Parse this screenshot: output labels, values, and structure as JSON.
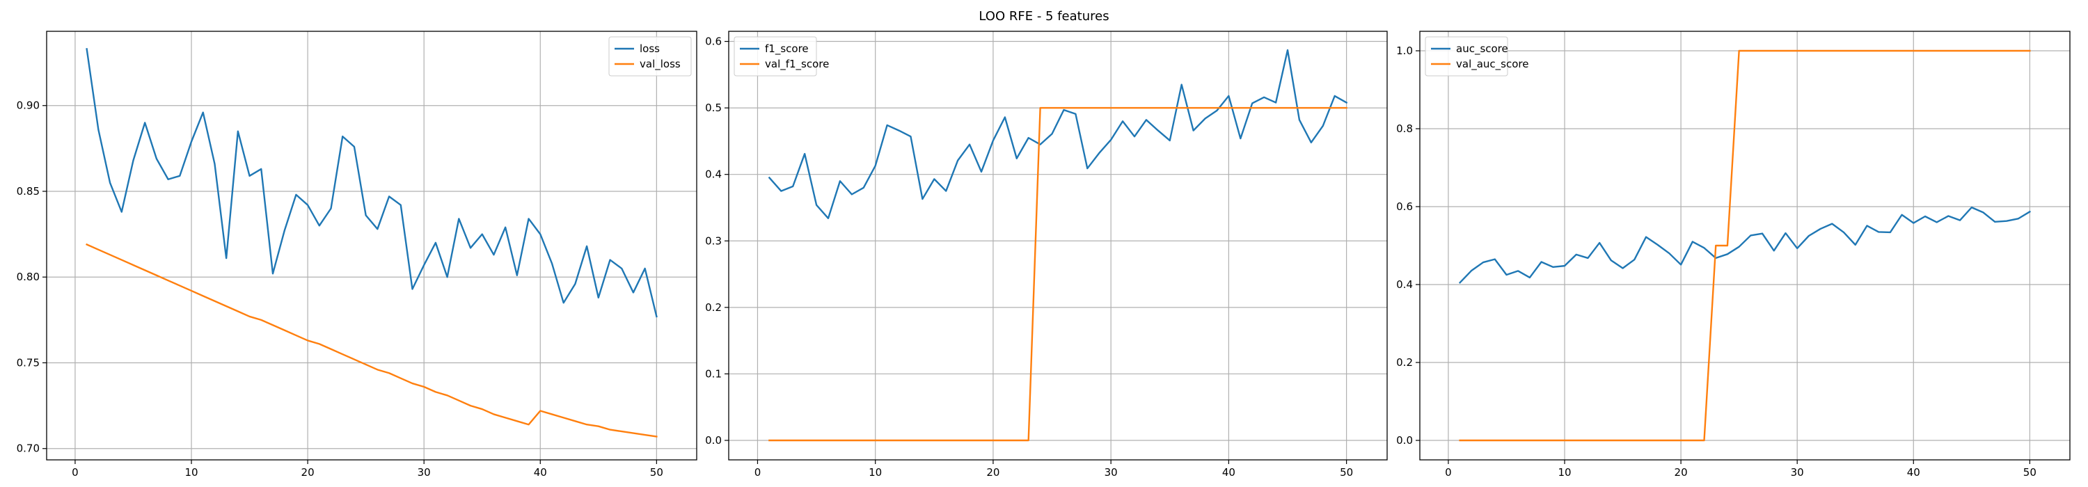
{
  "figure": {
    "title": "LOO RFE - 5 features"
  },
  "chart_data": [
    {
      "type": "line",
      "title": "",
      "xlabel": "",
      "ylabel": "",
      "xlim": [
        -2.45,
        53.45
      ],
      "ylim": [
        0.6934,
        0.9433
      ],
      "xticks": [
        0,
        10,
        20,
        30,
        40,
        50
      ],
      "yticks": [
        0.7,
        0.75,
        0.8,
        0.85,
        0.9
      ],
      "ytick_labels": [
        "0.70",
        "0.75",
        "0.80",
        "0.85",
        "0.90"
      ],
      "grid": true,
      "legend_position": "upper right",
      "series": [
        {
          "name": "loss",
          "color": "#1f77b4",
          "x": [
            1,
            2,
            3,
            4,
            5,
            6,
            7,
            8,
            9,
            10,
            11,
            12,
            13,
            14,
            15,
            16,
            17,
            18,
            19,
            20,
            21,
            22,
            23,
            24,
            25,
            26,
            27,
            28,
            29,
            30,
            31,
            32,
            33,
            34,
            35,
            36,
            37,
            38,
            39,
            40,
            41,
            42,
            43,
            44,
            45,
            46,
            47,
            48,
            49,
            50
          ],
          "values": [
            0.933,
            0.886,
            0.855,
            0.838,
            0.868,
            0.89,
            0.869,
            0.857,
            0.859,
            0.879,
            0.896,
            0.866,
            0.811,
            0.885,
            0.859,
            0.863,
            0.802,
            0.827,
            0.848,
            0.842,
            0.83,
            0.84,
            0.882,
            0.876,
            0.836,
            0.828,
            0.847,
            0.842,
            0.793,
            0.807,
            0.82,
            0.8,
            0.834,
            0.817,
            0.825,
            0.813,
            0.829,
            0.801,
            0.834,
            0.825,
            0.808,
            0.785,
            0.796,
            0.818,
            0.788,
            0.81,
            0.805,
            0.791,
            0.805,
            0.777
          ]
        },
        {
          "name": "val_loss",
          "color": "#ff7f0e",
          "x": [
            1,
            2,
            3,
            4,
            5,
            6,
            7,
            8,
            9,
            10,
            11,
            12,
            13,
            14,
            15,
            16,
            17,
            18,
            19,
            20,
            21,
            22,
            23,
            24,
            25,
            26,
            27,
            28,
            29,
            30,
            31,
            32,
            33,
            34,
            35,
            36,
            37,
            38,
            39,
            40,
            41,
            42,
            43,
            44,
            45,
            46,
            47,
            48,
            49,
            50
          ],
          "values": [
            0.819,
            0.816,
            0.813,
            0.81,
            0.807,
            0.804,
            0.801,
            0.798,
            0.795,
            0.792,
            0.789,
            0.786,
            0.783,
            0.78,
            0.777,
            0.775,
            0.772,
            0.769,
            0.766,
            0.763,
            0.761,
            0.758,
            0.755,
            0.752,
            0.749,
            0.746,
            0.744,
            0.741,
            0.738,
            0.736,
            0.733,
            0.731,
            0.728,
            0.725,
            0.723,
            0.72,
            0.718,
            0.716,
            0.714,
            0.722,
            0.72,
            0.718,
            0.716,
            0.714,
            0.713,
            0.711,
            0.71,
            0.709,
            0.708,
            0.707
          ]
        }
      ]
    },
    {
      "type": "line",
      "title": "",
      "xlabel": "",
      "ylabel": "",
      "xlim": [
        -2.45,
        53.45
      ],
      "ylim": [
        -0.0293,
        0.6152
      ],
      "xticks": [
        0,
        10,
        20,
        30,
        40,
        50
      ],
      "yticks": [
        0.0,
        0.1,
        0.2,
        0.3,
        0.4,
        0.5,
        0.6
      ],
      "ytick_labels": [
        "0.0",
        "0.1",
        "0.2",
        "0.3",
        "0.4",
        "0.5",
        "0.6"
      ],
      "grid": true,
      "legend_position": "upper left",
      "series": [
        {
          "name": "f1_score",
          "color": "#1f77b4",
          "x": [
            1,
            2,
            3,
            4,
            5,
            6,
            7,
            8,
            9,
            10,
            11,
            12,
            13,
            14,
            15,
            16,
            17,
            18,
            19,
            20,
            21,
            22,
            23,
            24,
            25,
            26,
            27,
            28,
            29,
            30,
            31,
            32,
            33,
            34,
            35,
            36,
            37,
            38,
            39,
            40,
            41,
            42,
            43,
            44,
            45,
            46,
            47,
            48,
            49,
            50
          ],
          "values": [
            0.395,
            0.375,
            0.382,
            0.431,
            0.354,
            0.334,
            0.39,
            0.37,
            0.38,
            0.413,
            0.474,
            0.466,
            0.457,
            0.363,
            0.393,
            0.375,
            0.421,
            0.445,
            0.404,
            0.451,
            0.486,
            0.424,
            0.455,
            0.445,
            0.461,
            0.497,
            0.491,
            0.409,
            0.432,
            0.452,
            0.48,
            0.457,
            0.482,
            0.466,
            0.451,
            0.535,
            0.466,
            0.484,
            0.496,
            0.518,
            0.454,
            0.507,
            0.516,
            0.508,
            0.587,
            0.482,
            0.448,
            0.473,
            0.518,
            0.508
          ]
        },
        {
          "name": "val_f1_score",
          "color": "#ff7f0e",
          "x": [
            1,
            2,
            3,
            4,
            5,
            6,
            7,
            8,
            9,
            10,
            11,
            12,
            13,
            14,
            15,
            16,
            17,
            18,
            19,
            20,
            21,
            22,
            23,
            24,
            25,
            26,
            27,
            28,
            29,
            30,
            31,
            32,
            33,
            34,
            35,
            36,
            37,
            38,
            39,
            40,
            41,
            42,
            43,
            44,
            45,
            46,
            47,
            48,
            49,
            50
          ],
          "values": [
            0,
            0,
            0,
            0,
            0,
            0,
            0,
            0,
            0,
            0,
            0,
            0,
            0,
            0,
            0,
            0,
            0,
            0,
            0,
            0,
            0,
            0,
            0,
            0.5,
            0.5,
            0.5,
            0.5,
            0.5,
            0.5,
            0.5,
            0.5,
            0.5,
            0.5,
            0.5,
            0.5,
            0.5,
            0.5,
            0.5,
            0.5,
            0.5,
            0.5,
            0.5,
            0.5,
            0.5,
            0.5,
            0.5,
            0.5,
            0.5,
            0.5,
            0.5
          ]
        }
      ]
    },
    {
      "type": "line",
      "title": "",
      "xlabel": "",
      "ylabel": "",
      "xlim": [
        -2.45,
        53.45
      ],
      "ylim": [
        -0.05,
        1.05
      ],
      "xticks": [
        0,
        10,
        20,
        30,
        40,
        50
      ],
      "yticks": [
        0.0,
        0.2,
        0.4,
        0.6,
        0.8,
        1.0
      ],
      "ytick_labels": [
        "0.0",
        "0.2",
        "0.4",
        "0.6",
        "0.8",
        "1.0"
      ],
      "grid": true,
      "legend_position": "upper left",
      "series": [
        {
          "name": "auc_score",
          "color": "#1f77b4",
          "x": [
            1,
            2,
            3,
            4,
            5,
            6,
            7,
            8,
            9,
            10,
            11,
            12,
            13,
            14,
            15,
            16,
            17,
            18,
            19,
            20,
            21,
            22,
            23,
            24,
            25,
            26,
            27,
            28,
            29,
            30,
            31,
            32,
            33,
            34,
            35,
            36,
            37,
            38,
            39,
            40,
            41,
            42,
            43,
            44,
            45,
            46,
            47,
            48,
            49,
            50
          ],
          "values": [
            0.405,
            0.436,
            0.457,
            0.465,
            0.425,
            0.435,
            0.418,
            0.458,
            0.445,
            0.448,
            0.477,
            0.468,
            0.507,
            0.462,
            0.442,
            0.464,
            0.522,
            0.502,
            0.48,
            0.451,
            0.51,
            0.494,
            0.468,
            0.478,
            0.497,
            0.526,
            0.531,
            0.487,
            0.532,
            0.493,
            0.525,
            0.543,
            0.556,
            0.534,
            0.502,
            0.551,
            0.535,
            0.534,
            0.579,
            0.558,
            0.575,
            0.56,
            0.576,
            0.565,
            0.598,
            0.585,
            0.561,
            0.563,
            0.569,
            0.587
          ]
        },
        {
          "name": "val_auc_score",
          "color": "#ff7f0e",
          "x": [
            1,
            2,
            3,
            4,
            5,
            6,
            7,
            8,
            9,
            10,
            11,
            12,
            13,
            14,
            15,
            16,
            17,
            18,
            19,
            20,
            21,
            22,
            23,
            24,
            25,
            26,
            27,
            28,
            29,
            30,
            31,
            32,
            33,
            34,
            35,
            36,
            37,
            38,
            39,
            40,
            41,
            42,
            43,
            44,
            45,
            46,
            47,
            48,
            49,
            50
          ],
          "values": [
            0,
            0,
            0,
            0,
            0,
            0,
            0,
            0,
            0,
            0,
            0,
            0,
            0.0,
            0,
            0,
            0,
            0,
            0,
            0,
            0,
            0,
            0,
            0.5,
            0.5,
            1,
            1,
            1,
            1,
            1,
            1,
            1,
            1,
            1,
            1,
            1,
            1,
            1,
            1,
            1,
            1,
            1,
            1,
            1,
            1,
            1,
            1,
            1,
            1,
            1,
            1
          ]
        }
      ]
    }
  ]
}
